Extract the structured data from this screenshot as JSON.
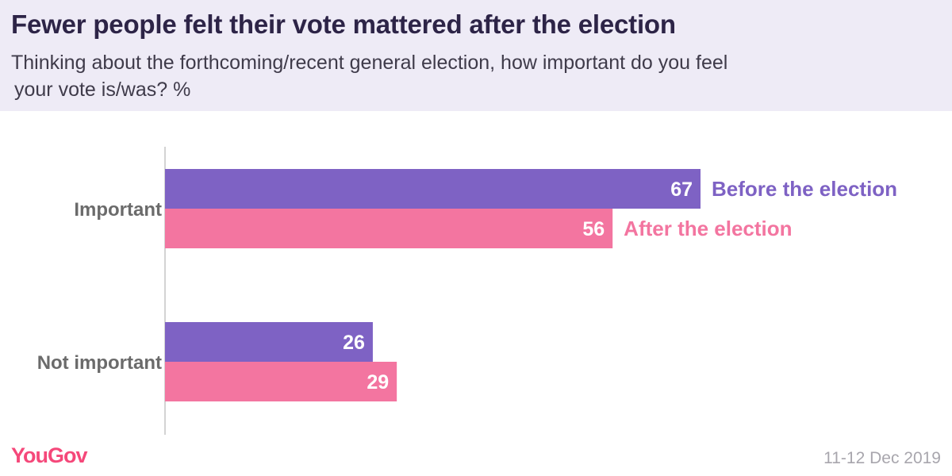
{
  "chart_data": {
    "type": "bar",
    "orientation": "horizontal",
    "title": "Fewer people felt their vote mattered after the election",
    "subtitle_line1": "Thinking about the forthcoming/recent general election, how important do you feel",
    "subtitle_line2": "your vote is/was? %",
    "categories": [
      "Important",
      "Not important"
    ],
    "series": [
      {
        "name": "Before the election",
        "color": "#7e62c4",
        "values": [
          67,
          26
        ]
      },
      {
        "name": "After the election",
        "color": "#f375a0",
        "values": [
          56,
          29
        ]
      }
    ],
    "xlim": [
      0,
      100
    ],
    "grid": false,
    "legend": "inline labels beside the Important bars"
  },
  "brand": {
    "logo": "YouGov",
    "color": "#f5487a"
  },
  "footer": {
    "date": "11-12 Dec 2019"
  }
}
